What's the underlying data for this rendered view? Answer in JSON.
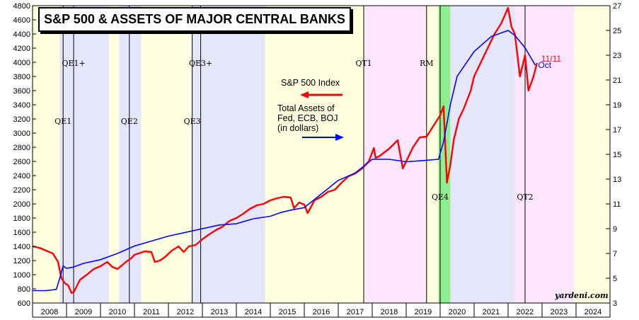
{
  "chart_data": {
    "type": "line",
    "title": "S&P 500 & ASSETS OF MAJOR CENTRAL BANKS",
    "source": "yardeni.com",
    "x_axis": {
      "range": [
        2008.0,
        2025.0
      ],
      "tick_labels": [
        "2008",
        "2009",
        "2010",
        "2011",
        "2012",
        "2013",
        "2014",
        "2015",
        "2016",
        "2017",
        "2018",
        "2019",
        "2020",
        "2021",
        "2022",
        "2023",
        "2024"
      ]
    },
    "y_left": {
      "range": [
        600,
        4800
      ],
      "ticks": [
        600,
        800,
        1000,
        1200,
        1400,
        1600,
        1800,
        2000,
        2200,
        2400,
        2600,
        2800,
        3000,
        3200,
        3400,
        3600,
        3800,
        4000,
        4200,
        4400,
        4600,
        4800
      ]
    },
    "y_right": {
      "range": [
        3,
        27
      ],
      "ticks": [
        3,
        5,
        7,
        9,
        11,
        13,
        15,
        17,
        19,
        21,
        23,
        25,
        27
      ]
    },
    "periods": [
      {
        "start": 2008.0,
        "end": 2008.8,
        "color": "#ffffe0"
      },
      {
        "start": 2008.8,
        "end": 2010.25,
        "color": "#e6e6fa"
      },
      {
        "start": 2010.25,
        "end": 2010.55,
        "color": "#ffffe0"
      },
      {
        "start": 2010.55,
        "end": 2011.2,
        "color": "#e6e6fa"
      },
      {
        "start": 2011.2,
        "end": 2012.7,
        "color": "#ffffe0"
      },
      {
        "start": 2012.7,
        "end": 2014.85,
        "color": "#e6e6fa"
      },
      {
        "start": 2014.85,
        "end": 2017.75,
        "color": "#ffffe0"
      },
      {
        "start": 2017.75,
        "end": 2019.6,
        "color": "#ffe6ff"
      },
      {
        "start": 2019.6,
        "end": 2019.95,
        "color": "#ffffe0"
      },
      {
        "start": 2019.95,
        "end": 2020.3,
        "color": "#90ee90"
      },
      {
        "start": 2020.3,
        "end": 2022.2,
        "color": "#e6e6fa"
      },
      {
        "start": 2022.2,
        "end": 2023.95,
        "color": "#ffe6ff"
      },
      {
        "start": 2023.95,
        "end": 2025.0,
        "color": "#ffffe0"
      }
    ],
    "events": [
      {
        "label": "QE1",
        "x": 2008.9,
        "label_y": 3130
      },
      {
        "label": "QE1+",
        "x": 2009.21,
        "label_y": 3950
      },
      {
        "label": "QE2",
        "x": 2010.85,
        "label_y": 3130
      },
      {
        "label": "QE3",
        "x": 2012.7,
        "label_y": 3130
      },
      {
        "label": "QE3+",
        "x": 2012.95,
        "label_y": 3950
      },
      {
        "label": "QT1",
        "x": 2017.75,
        "label_y": 3950
      },
      {
        "label": "RM",
        "x": 2019.6,
        "label_y": 3950
      },
      {
        "label": "QE4",
        "x": 2020.0,
        "label_y": 2060
      },
      {
        "label": "QT2",
        "x": 2022.5,
        "label_y": 2060
      }
    ],
    "legend": {
      "position": "center-top",
      "entries": [
        {
          "label": "S&P 500 Index",
          "color": "#ff0000",
          "axis": "left"
        },
        {
          "label": "Total Assets of Fed, ECB, BOJ (in dollars)",
          "lines": [
            "Total Assets of",
            "Fed, ECB, BOJ",
            "(in dollars)"
          ],
          "color": "#0000ff",
          "axis": "right"
        }
      ]
    },
    "end_labels": [
      {
        "text": "11/11",
        "color": "#ff0000"
      },
      {
        "text": "Oct",
        "color": "#0000ff"
      }
    ],
    "series": [
      {
        "name": "S&P 500 Index",
        "axis": "left",
        "color": "#ff0000",
        "x": [
          2008.0,
          2008.2,
          2008.4,
          2008.6,
          2008.75,
          2008.85,
          2008.95,
          2009.05,
          2009.15,
          2009.22,
          2009.4,
          2009.6,
          2009.8,
          2010.0,
          2010.2,
          2010.35,
          2010.5,
          2010.6,
          2010.75,
          2010.9,
          2011.0,
          2011.3,
          2011.5,
          2011.6,
          2011.75,
          2011.9,
          2012.1,
          2012.3,
          2012.45,
          2012.6,
          2012.8,
          2013.0,
          2013.2,
          2013.4,
          2013.6,
          2013.8,
          2014.0,
          2014.2,
          2014.4,
          2014.6,
          2014.8,
          2015.0,
          2015.2,
          2015.4,
          2015.6,
          2015.7,
          2015.85,
          2016.0,
          2016.1,
          2016.3,
          2016.5,
          2016.7,
          2016.9,
          2017.1,
          2017.3,
          2017.5,
          2017.7,
          2017.9,
          2018.05,
          2018.1,
          2018.2,
          2018.5,
          2018.75,
          2018.9,
          2019.0,
          2019.2,
          2019.4,
          2019.6,
          2019.8,
          2020.0,
          2020.1,
          2020.2,
          2020.3,
          2020.4,
          2020.55,
          2020.7,
          2020.9,
          2021.0,
          2021.2,
          2021.4,
          2021.6,
          2021.8,
          2022.0,
          2022.1,
          2022.2,
          2022.35,
          2022.5,
          2022.6,
          2022.75,
          2022.85
        ],
        "values": [
          1400,
          1380,
          1340,
          1300,
          1180,
          950,
          880,
          850,
          740,
          760,
          930,
          1000,
          1080,
          1120,
          1180,
          1110,
          1080,
          1120,
          1180,
          1230,
          1280,
          1330,
          1320,
          1180,
          1200,
          1250,
          1340,
          1400,
          1320,
          1400,
          1420,
          1500,
          1570,
          1630,
          1680,
          1760,
          1800,
          1860,
          1930,
          1980,
          2000,
          2050,
          2080,
          2100,
          2090,
          1940,
          2020,
          1990,
          1870,
          2050,
          2100,
          2170,
          2200,
          2300,
          2390,
          2430,
          2500,
          2600,
          2790,
          2650,
          2670,
          2780,
          2900,
          2500,
          2600,
          2800,
          2940,
          2950,
          3100,
          3250,
          3380,
          2300,
          2550,
          2900,
          3200,
          3350,
          3600,
          3800,
          4000,
          4200,
          4400,
          4550,
          4770,
          4500,
          4400,
          3800,
          4100,
          3600,
          3800,
          3990
        ]
      },
      {
        "name": "Total Assets of Fed, ECB, BOJ",
        "axis": "right",
        "color": "#0000ff",
        "x": [
          2008.0,
          2008.4,
          2008.7,
          2008.8,
          2008.9,
          2009.0,
          2009.2,
          2009.5,
          2010.0,
          2010.5,
          2011.0,
          2011.5,
          2012.0,
          2012.5,
          2013.0,
          2013.5,
          2014.0,
          2014.5,
          2015.0,
          2015.3,
          2015.6,
          2016.0,
          2016.5,
          2017.0,
          2017.5,
          2018.0,
          2018.5,
          2019.0,
          2019.5,
          2019.95,
          2020.1,
          2020.3,
          2020.5,
          2021.0,
          2021.5,
          2022.0,
          2022.2,
          2022.5,
          2022.8
        ],
        "values": [
          4.0,
          4.0,
          4.1,
          5.0,
          6.0,
          5.8,
          5.9,
          6.2,
          6.5,
          7.0,
          7.6,
          8.0,
          8.4,
          8.7,
          9.0,
          9.3,
          9.4,
          9.8,
          10.0,
          10.3,
          10.5,
          10.7,
          11.8,
          12.9,
          13.5,
          14.6,
          14.6,
          14.4,
          14.5,
          14.6,
          16.0,
          19.0,
          21.3,
          23.3,
          24.5,
          25.0,
          24.6,
          23.6,
          22.2
        ]
      }
    ]
  }
}
